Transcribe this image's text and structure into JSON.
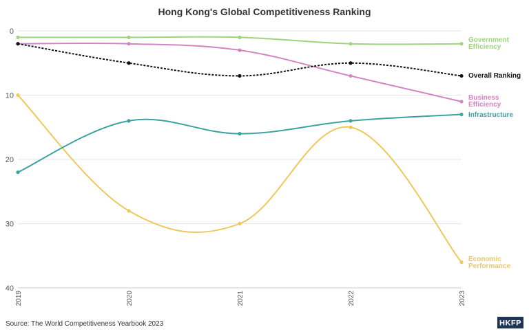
{
  "chart_data": {
    "type": "line",
    "title": "Hong Kong's Global Competitiveness Ranking",
    "xlabel": "",
    "ylabel": "",
    "categories": [
      "2019",
      "2020",
      "2021",
      "2022",
      "2023"
    ],
    "ylim": [
      0,
      40
    ],
    "y_inverted": true,
    "y_ticks": [
      "0",
      "10",
      "20",
      "30",
      "40"
    ],
    "grid": "horizontal",
    "legend": "labels at line ends (right)",
    "series": [
      {
        "name": "Government Efficiency",
        "label_lines": [
          "Government",
          "Efficiency"
        ],
        "color": "#9dd47d",
        "dashed": false,
        "values": [
          1,
          1,
          1,
          2,
          2
        ]
      },
      {
        "name": "Overall Ranking",
        "label_lines": [
          "Overall Ranking"
        ],
        "color": "#111111",
        "dashed": true,
        "values": [
          2,
          5,
          7,
          5,
          7
        ]
      },
      {
        "name": "Business Efficiency",
        "label_lines": [
          "Business",
          "Efficiency"
        ],
        "color": "#d384c3",
        "dashed": false,
        "values": [
          2,
          2,
          3,
          7,
          11
        ]
      },
      {
        "name": "Infrastructure",
        "label_lines": [
          "Infrastructure"
        ],
        "color": "#3aa3a0",
        "dashed": false,
        "values": [
          22,
          14,
          16,
          14,
          13
        ]
      },
      {
        "name": "Economic Performance",
        "label_lines": [
          "Economic",
          "Performance"
        ],
        "color": "#f0c85a",
        "dashed": false,
        "values": [
          10,
          28,
          30,
          15,
          36
        ]
      }
    ]
  },
  "source": "Source: The World Competitiveness Yearbook 2023",
  "logo": "HKFP"
}
